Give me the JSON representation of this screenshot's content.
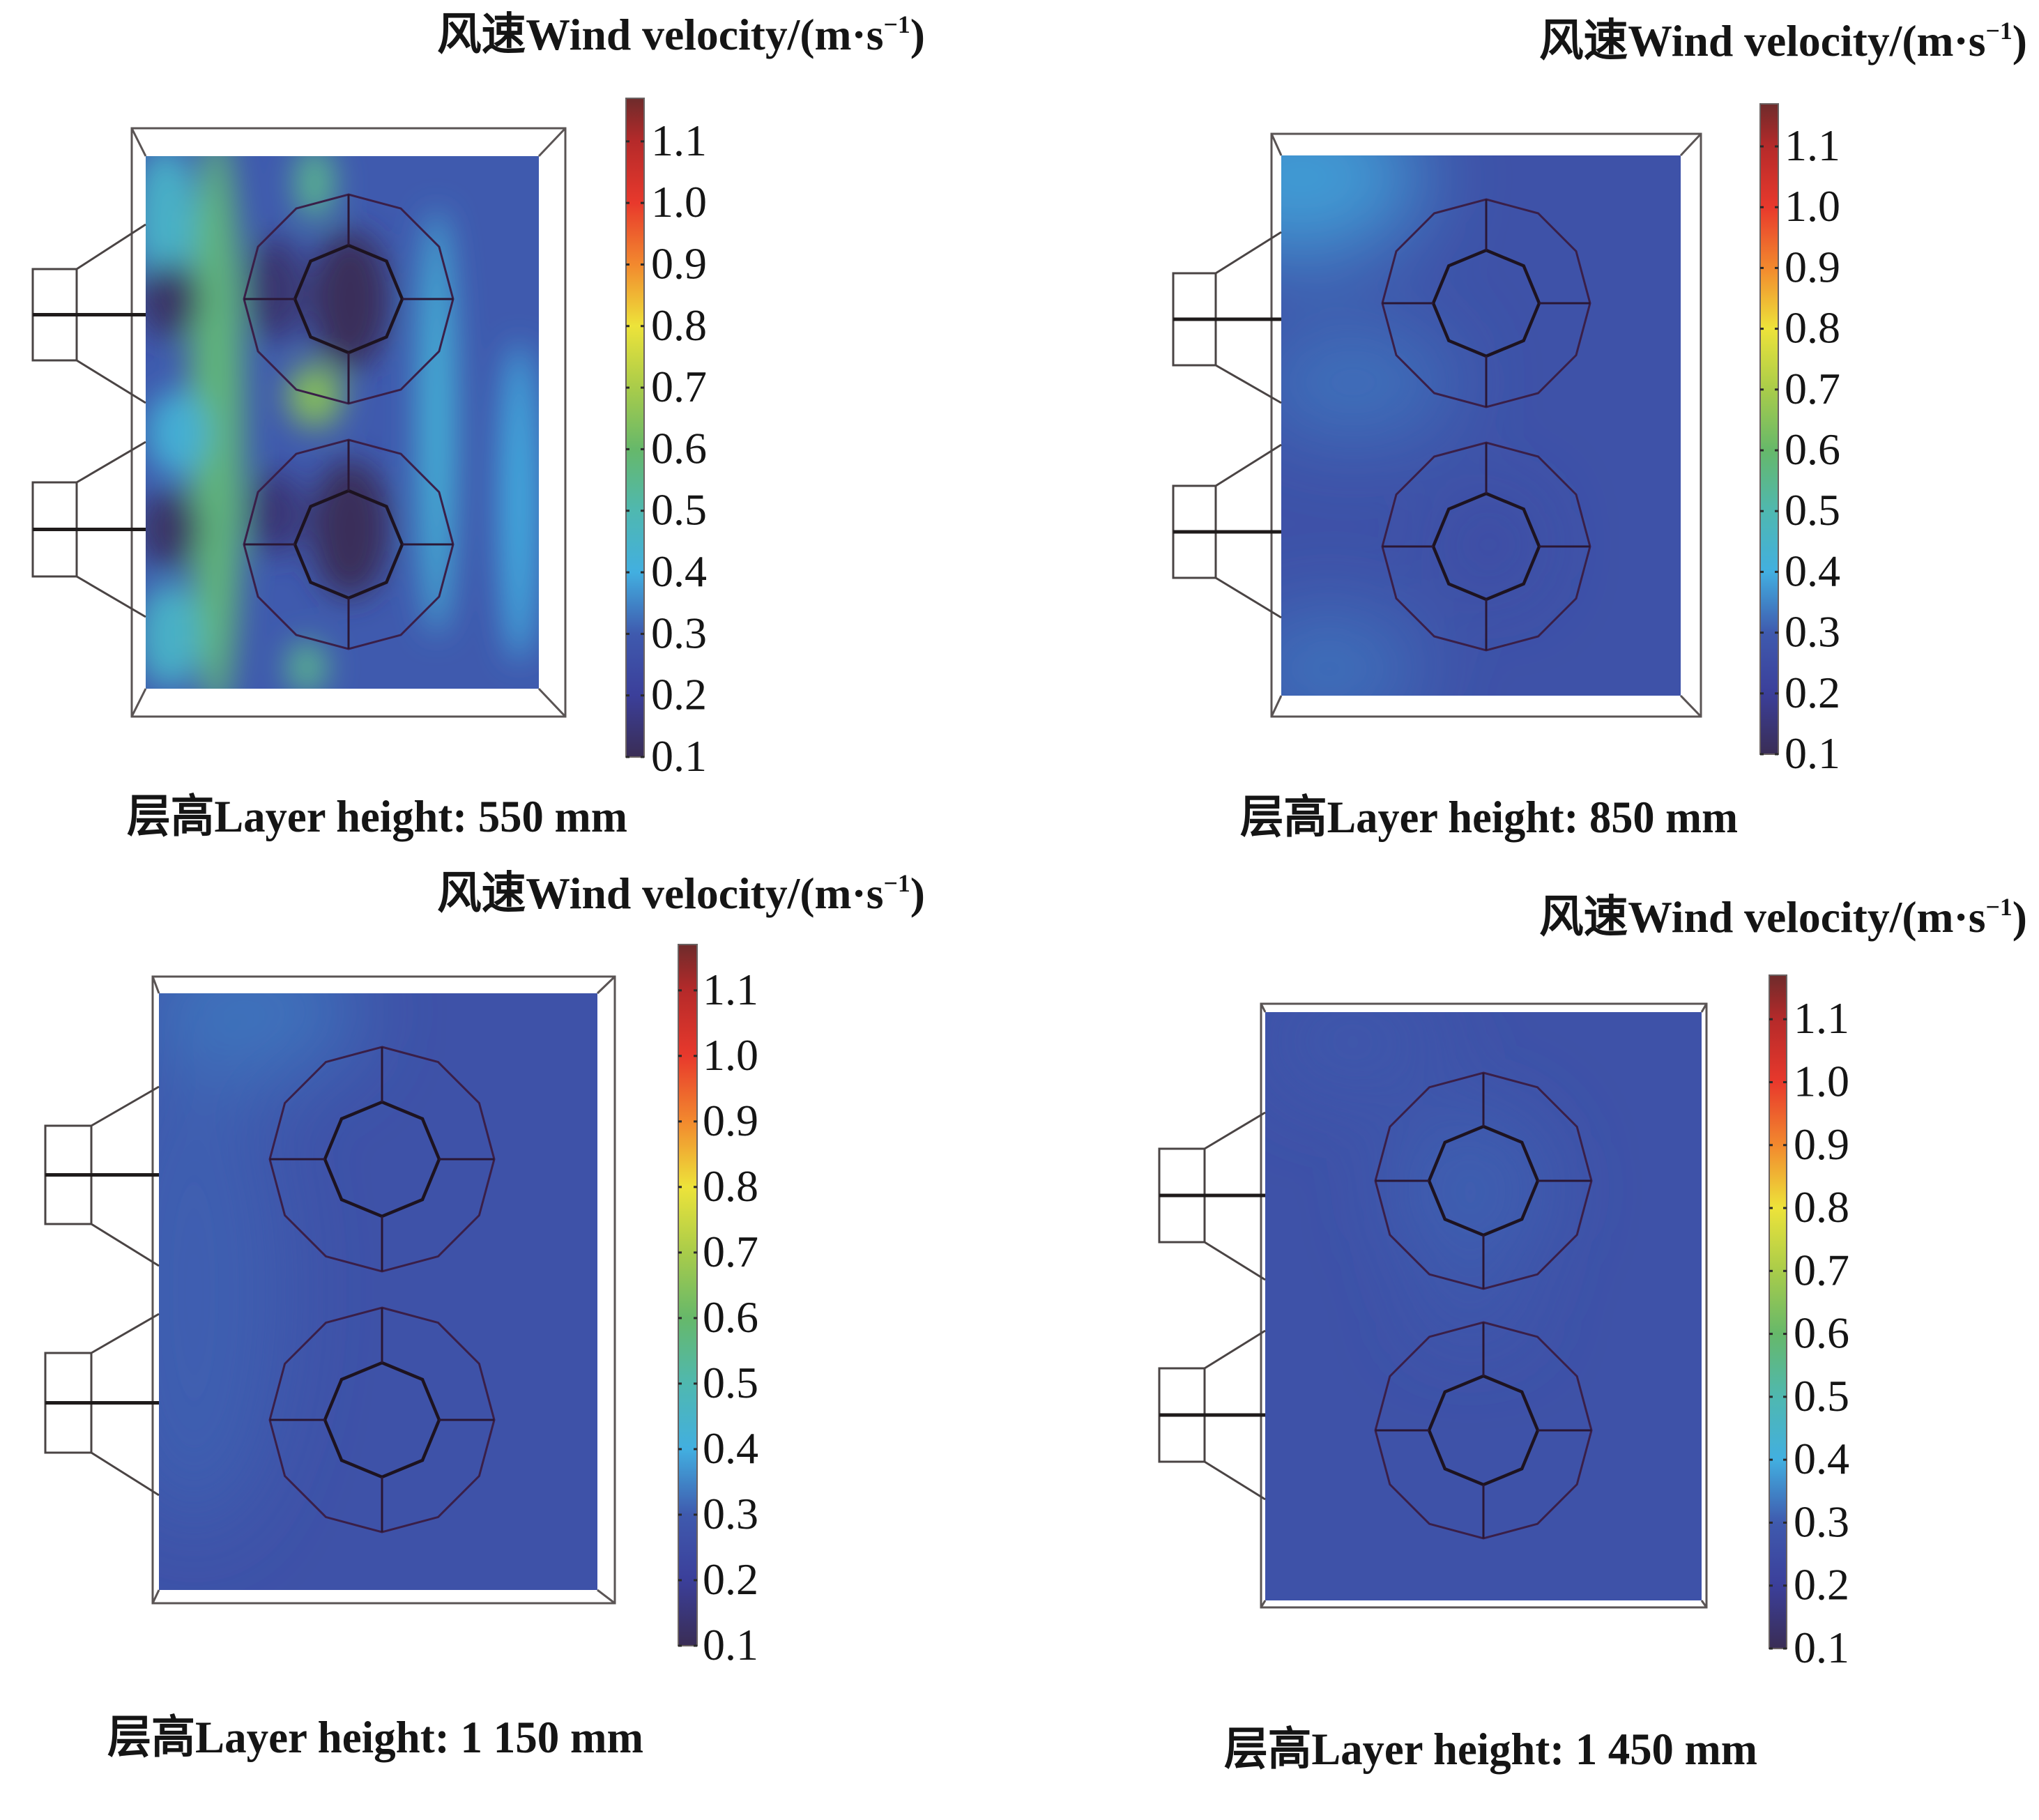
{
  "figure": {
    "description": "Wind velocity contour maps at four layer heights"
  },
  "chart_data": [
    {
      "type": "heatmap",
      "id": "panel_550",
      "title": "风速Wind velocity/(m·s⁻¹)",
      "title_parts": {
        "main": "风速Wind velocity/(m·s",
        "sup": "−1",
        "close": ")"
      },
      "caption": "层高Layer height: 550 mm",
      "layer_height_mm": 550,
      "colorbar": {
        "label": "风速Wind velocity/(m·s⁻¹)",
        "range": [
          0.1,
          1.17
        ],
        "ticks": [
          0.1,
          0.2,
          0.3,
          0.4,
          0.5,
          0.6,
          0.7,
          0.8,
          0.9,
          1.0,
          1.1
        ],
        "tick_labels": [
          "0.1",
          "0.2",
          "0.3",
          "0.4",
          "0.5",
          "0.6",
          "0.7",
          "0.8",
          "0.9",
          "1.0",
          "1.1"
        ],
        "colormap": "rainbow"
      },
      "base_velocity": 0.3,
      "field_regions": [
        {
          "name": "left inlet jet band",
          "u": 0.18,
          "v": 0.5,
          "velocity": 0.58,
          "ru": 0.07,
          "rv": 0.55
        },
        {
          "name": "left edge top",
          "u": 0.05,
          "v": 0.12,
          "velocity": 0.45,
          "ru": 0.08,
          "rv": 0.14
        },
        {
          "name": "left edge mid",
          "u": 0.08,
          "v": 0.52,
          "velocity": 0.42,
          "ru": 0.08,
          "rv": 0.08
        },
        {
          "name": "left edge bottom",
          "u": 0.06,
          "v": 0.9,
          "velocity": 0.45,
          "ru": 0.08,
          "rv": 0.1
        },
        {
          "name": "wake behind inlet 1",
          "u": 0.06,
          "v": 0.27,
          "velocity": 0.12,
          "ru": 0.08,
          "rv": 0.07
        },
        {
          "name": "wake behind inlet 2",
          "u": 0.06,
          "v": 0.7,
          "velocity": 0.12,
          "ru": 0.08,
          "rv": 0.07
        },
        {
          "name": "gap between rings",
          "u": 0.43,
          "v": 0.45,
          "velocity": 0.65,
          "ru": 0.07,
          "rv": 0.06
        },
        {
          "name": "top stripe",
          "u": 0.43,
          "v": 0.05,
          "velocity": 0.55,
          "ru": 0.05,
          "rv": 0.07
        },
        {
          "name": "bottom stripe",
          "u": 0.41,
          "v": 0.96,
          "velocity": 0.55,
          "ru": 0.05,
          "rv": 0.05
        },
        {
          "name": "ring 1 core",
          "u": 0.52,
          "v": 0.27,
          "velocity": 0.1,
          "ru": 0.1,
          "rv": 0.13
        },
        {
          "name": "ring 1 left",
          "u": 0.33,
          "v": 0.25,
          "velocity": 0.13,
          "ru": 0.07,
          "rv": 0.1
        },
        {
          "name": "ring 2 core",
          "u": 0.52,
          "v": 0.7,
          "velocity": 0.1,
          "ru": 0.1,
          "rv": 0.13
        },
        {
          "name": "ring 2 left",
          "u": 0.33,
          "v": 0.67,
          "velocity": 0.14,
          "ru": 0.07,
          "rv": 0.08
        },
        {
          "name": "right stripe",
          "u": 0.74,
          "v": 0.5,
          "velocity": 0.42,
          "ru": 0.05,
          "rv": 0.4
        },
        {
          "name": "right edge",
          "u": 0.95,
          "v": 0.65,
          "velocity": 0.4,
          "ru": 0.05,
          "rv": 0.3
        }
      ]
    },
    {
      "type": "heatmap",
      "id": "panel_850",
      "title": "风速Wind velocity/(m·s⁻¹)",
      "title_parts": {
        "main": "风速Wind velocity/(m·s",
        "sup": "−1",
        "close": ")"
      },
      "caption": "层高Layer height: 850 mm",
      "layer_height_mm": 850,
      "colorbar": {
        "label": "风速Wind velocity/(m·s⁻¹)",
        "range": [
          0.1,
          1.17
        ],
        "ticks": [
          0.1,
          0.2,
          0.3,
          0.4,
          0.5,
          0.6,
          0.7,
          0.8,
          0.9,
          1.0,
          1.1
        ],
        "tick_labels": [
          "0.1",
          "0.2",
          "0.3",
          "0.4",
          "0.5",
          "0.6",
          "0.7",
          "0.8",
          "0.9",
          "1.0",
          "1.1"
        ],
        "colormap": "rainbow"
      },
      "base_velocity": 0.27,
      "field_regions": [
        {
          "name": "top-left corner",
          "u": 0.05,
          "v": 0.04,
          "velocity": 0.4,
          "ru": 0.3,
          "rv": 0.15
        },
        {
          "name": "mid-left",
          "u": 0.18,
          "v": 0.42,
          "velocity": 0.34,
          "ru": 0.25,
          "rv": 0.1
        },
        {
          "name": "bottom-left",
          "u": 0.12,
          "v": 0.95,
          "velocity": 0.34,
          "ru": 0.22,
          "rv": 0.1
        },
        {
          "name": "ring 2 core",
          "u": 0.52,
          "v": 0.72,
          "velocity": 0.24,
          "ru": 0.1,
          "rv": 0.08
        }
      ]
    },
    {
      "type": "heatmap",
      "id": "panel_1150",
      "title": "风速Wind velocity/(m·s⁻¹)",
      "title_parts": {
        "main": "风速Wind velocity/(m·s",
        "sup": "−1",
        "close": ")"
      },
      "caption": "层高Layer height: 1 150 mm",
      "layer_height_mm": 1150,
      "colorbar": {
        "label": "风速Wind velocity/(m·s⁻¹)",
        "range": [
          0.1,
          1.17
        ],
        "ticks": [
          0.1,
          0.2,
          0.3,
          0.4,
          0.5,
          0.6,
          0.7,
          0.8,
          0.9,
          1.0,
          1.1
        ],
        "tick_labels": [
          "0.1",
          "0.2",
          "0.3",
          "0.4",
          "0.5",
          "0.6",
          "0.7",
          "0.8",
          "0.9",
          "1.0",
          "1.1"
        ],
        "colormap": "rainbow"
      },
      "base_velocity": 0.27,
      "field_regions": [
        {
          "name": "top-left corner",
          "u": 0.2,
          "v": 0.03,
          "velocity": 0.34,
          "ru": 0.25,
          "rv": 0.12
        },
        {
          "name": "left side",
          "u": 0.08,
          "v": 0.5,
          "velocity": 0.31,
          "ru": 0.2,
          "rv": 0.4
        }
      ]
    },
    {
      "type": "heatmap",
      "id": "panel_1450",
      "title": "风速Wind velocity/(m·s⁻¹)",
      "title_parts": {
        "main": "风速Wind velocity/(m·s",
        "sup": "−1",
        "close": ")"
      },
      "caption": "层高Layer height: 1 450 mm",
      "layer_height_mm": 1450,
      "colorbar": {
        "label": "风速Wind velocity/(m·s⁻¹)",
        "range": [
          0.1,
          1.17
        ],
        "ticks": [
          0.1,
          0.2,
          0.3,
          0.4,
          0.5,
          0.6,
          0.7,
          0.8,
          0.9,
          1.0,
          1.1
        ],
        "tick_labels": [
          "0.1",
          "0.2",
          "0.3",
          "0.4",
          "0.5",
          "0.6",
          "0.7",
          "0.8",
          "0.9",
          "1.0",
          "1.1"
        ],
        "colormap": "rainbow"
      },
      "base_velocity": 0.27,
      "field_regions": [
        {
          "name": "ring 1 region",
          "u": 0.47,
          "v": 0.3,
          "velocity": 0.31,
          "ru": 0.18,
          "rv": 0.13
        },
        {
          "name": "between rings",
          "u": 0.47,
          "v": 0.5,
          "velocity": 0.3,
          "ru": 0.12,
          "rv": 0.05
        },
        {
          "name": "top-left",
          "u": 0.2,
          "v": 0.05,
          "velocity": 0.29,
          "ru": 0.2,
          "rv": 0.1
        }
      ]
    }
  ],
  "colormap_stops": [
    {
      "value": 0.1,
      "color": "#3a2d55"
    },
    {
      "value": 0.2,
      "color": "#3b3f9a"
    },
    {
      "value": 0.3,
      "color": "#3f5aae"
    },
    {
      "value": 0.4,
      "color": "#42afe0"
    },
    {
      "value": 0.5,
      "color": "#4fb8b0"
    },
    {
      "value": 0.6,
      "color": "#66b86a"
    },
    {
      "value": 0.7,
      "color": "#a9cc4a"
    },
    {
      "value": 0.8,
      "color": "#ede33a"
    },
    {
      "value": 0.9,
      "color": "#f2892e"
    },
    {
      "value": 1.0,
      "color": "#e8392c"
    },
    {
      "value": 1.1,
      "color": "#b52a2a"
    },
    {
      "value": 1.17,
      "color": "#6e2b2b"
    }
  ]
}
